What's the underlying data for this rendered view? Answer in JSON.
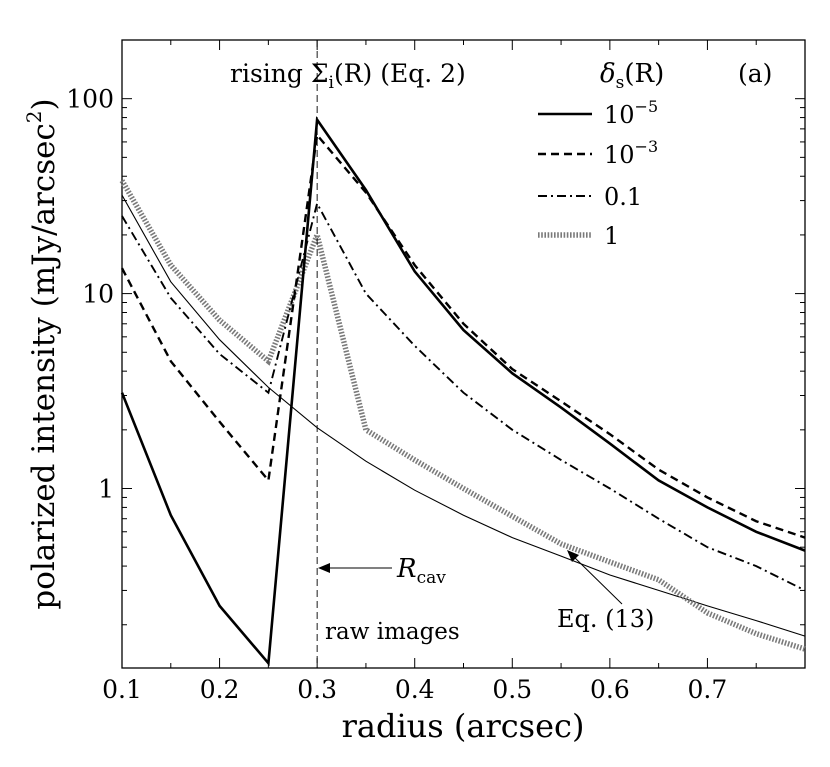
{
  "chart_data": {
    "type": "line",
    "title": "",
    "xlabel": "radius (arcsec)",
    "ylabel": "polarized intensity (mJy/arcsec",
    "ylabel_exponent": "2",
    "ylabel_close": ")",
    "xlim": [
      0.1,
      0.8
    ],
    "ylim": [
      0.12,
      200
    ],
    "yscale": "log",
    "panel_label": "(a)",
    "legend": {
      "title_main": "δ",
      "title_sub": "s",
      "title_arg": "(R)",
      "location": "top-right"
    },
    "annotations": {
      "rising_pre": "rising Σ",
      "rising_sub": "i",
      "rising_post": "(R) (Eq. 2)",
      "rcav_main": "R",
      "rcav_sub": "cav",
      "raw_images": "raw images",
      "eq13": "Eq. (13)"
    },
    "vline_x": 0.3,
    "x_ticks": [
      {
        "value": 0.1,
        "label": "0.1"
      },
      {
        "value": 0.2,
        "label": "0.2"
      },
      {
        "value": 0.3,
        "label": "0.3"
      },
      {
        "value": 0.4,
        "label": "0.4"
      },
      {
        "value": 0.5,
        "label": "0.5"
      },
      {
        "value": 0.6,
        "label": "0.6"
      },
      {
        "value": 0.7,
        "label": "0.7"
      }
    ],
    "y_ticks": [
      {
        "value": 1,
        "label": "1"
      },
      {
        "value": 10,
        "label": "10"
      },
      {
        "value": 100,
        "label": "100"
      }
    ],
    "series": [
      {
        "name": "10^-5",
        "label_base": "10",
        "label_exp": "−5",
        "style": "solid",
        "x": [
          0.1,
          0.15,
          0.2,
          0.25,
          0.3,
          0.35,
          0.4,
          0.45,
          0.5,
          0.55,
          0.6,
          0.65,
          0.7,
          0.75,
          0.8
        ],
        "y": [
          3.1,
          0.73,
          0.25,
          0.127,
          78,
          34,
          13,
          6.5,
          3.9,
          2.6,
          1.7,
          1.1,
          0.8,
          0.6,
          0.48
        ]
      },
      {
        "name": "10^-3",
        "label_base": "10",
        "label_exp": "−3",
        "style": "dashed",
        "x": [
          0.1,
          0.15,
          0.2,
          0.25,
          0.3,
          0.35,
          0.4,
          0.45,
          0.5,
          0.55,
          0.6,
          0.65,
          0.7,
          0.75,
          0.8
        ],
        "y": [
          13.5,
          4.5,
          2.2,
          1.1,
          65,
          33,
          14,
          7.0,
          4.1,
          2.8,
          1.9,
          1.25,
          0.9,
          0.68,
          0.56
        ]
      },
      {
        "name": "0.1",
        "label_base": "0.1",
        "label_exp": "",
        "style": "dashdot",
        "x": [
          0.1,
          0.15,
          0.2,
          0.25,
          0.3,
          0.35,
          0.4,
          0.45,
          0.5,
          0.55,
          0.6,
          0.65,
          0.7,
          0.75,
          0.8
        ],
        "y": [
          25,
          9.5,
          4.9,
          3.1,
          29,
          10,
          5.4,
          3.1,
          2.0,
          1.4,
          1.0,
          0.7,
          0.5,
          0.4,
          0.3
        ]
      },
      {
        "name": "1",
        "label_base": "1",
        "label_exp": "",
        "style": "dotted",
        "x": [
          0.1,
          0.15,
          0.2,
          0.25,
          0.3,
          0.35,
          0.4,
          0.45,
          0.5,
          0.55,
          0.6,
          0.65,
          0.7,
          0.75,
          0.8
        ],
        "y": [
          38,
          14,
          7.3,
          4.5,
          20,
          2.0,
          1.4,
          1.0,
          0.72,
          0.52,
          0.42,
          0.34,
          0.23,
          0.18,
          0.15
        ]
      },
      {
        "name": "Eq. (13)",
        "label_base": "",
        "label_exp": "",
        "style": "thin",
        "x": [
          0.1,
          0.15,
          0.2,
          0.25,
          0.3,
          0.35,
          0.4,
          0.45,
          0.5,
          0.55,
          0.6,
          0.65,
          0.7,
          0.75,
          0.8
        ],
        "y": [
          32,
          11.5,
          5.8,
          3.3,
          2.05,
          1.38,
          0.98,
          0.73,
          0.56,
          0.45,
          0.36,
          0.3,
          0.25,
          0.21,
          0.175
        ]
      }
    ]
  }
}
